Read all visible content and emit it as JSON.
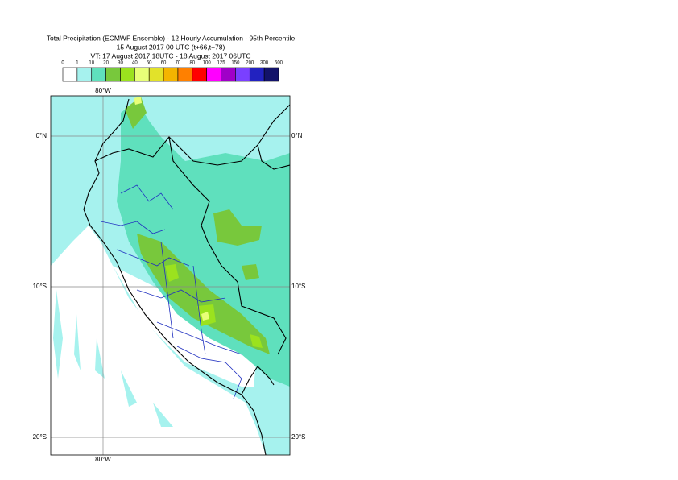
{
  "header": {
    "title": "Total Precipitation (ECMWF Ensemble) - 12 Hourly Accumulation - 95th Percentile",
    "run": "15 August 2017 00 UTC (t+66,t+78)",
    "valid": "VT: 17 August 2017 18UTC - 18 August 2017 06UTC"
  },
  "legend": {
    "bins": [
      0,
      1,
      10,
      20,
      30,
      40,
      50,
      60,
      70,
      80,
      100,
      125,
      150,
      200,
      300,
      500
    ],
    "colors": [
      "#ffffff",
      "#a6f2ee",
      "#5fe0bd",
      "#78c83c",
      "#9be21e",
      "#e8ff78",
      "#e2e22a",
      "#f4b400",
      "#ff8000",
      "#ff0000",
      "#ff00ff",
      "#a000c8",
      "#7a40ff",
      "#2222c0",
      "#12126a"
    ]
  },
  "map": {
    "lon_labels": [
      "80°W"
    ],
    "lat_labels": [
      "0°N",
      "10°S",
      "20°S"
    ]
  }
}
